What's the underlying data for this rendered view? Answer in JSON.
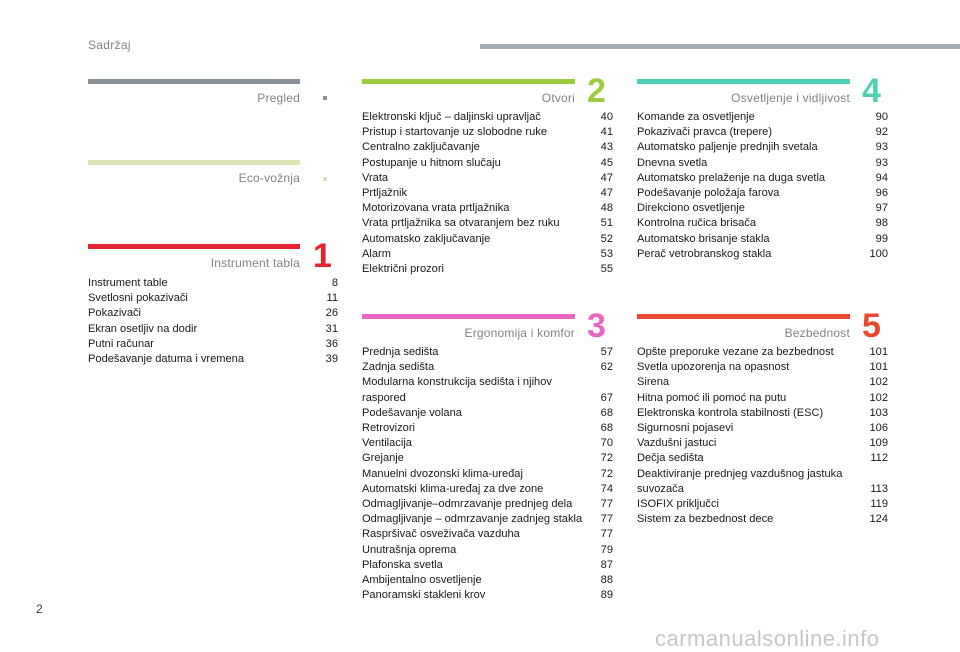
{
  "header": {
    "title": "Sadržaj"
  },
  "page_number": "2",
  "watermark": "carmanualsonline.info",
  "colors": {
    "pregled": "#8a9196",
    "eco": "#dde3b5",
    "instrument": "#e3242f",
    "otvori": "#9ccb3b",
    "ergonomija": "#e966c3",
    "osvetljenje": "#4fd0b4",
    "bezbednost": "#e8492e"
  },
  "sections": {
    "pregled": {
      "title": "Pregled"
    },
    "eco": {
      "title": "Eco-vožnja"
    },
    "instrument": {
      "title": "Instrument tabla",
      "number": "1",
      "items": [
        {
          "title": "Instrument table",
          "page": "8"
        },
        {
          "title": "Svetlosni pokazivači",
          "page": "11"
        },
        {
          "title": "Pokazivači",
          "page": "26"
        },
        {
          "title": "Ekran osetljiv na dodir",
          "page": "31"
        },
        {
          "title": "Putni računar",
          "page": "36"
        },
        {
          "title": "Podešavanje datuma i vremena",
          "page": "39"
        }
      ]
    },
    "otvori": {
      "title": "Otvori",
      "number": "2",
      "items": [
        {
          "title": "Elektronski ključ – daljinski upravljač",
          "page": "40"
        },
        {
          "title": "Pristup i startovanje uz slobodne ruke",
          "page": "41"
        },
        {
          "title": "Centralno zaključavanje",
          "page": "43"
        },
        {
          "title": "Postupanje u hitnom slučaju",
          "page": "45"
        },
        {
          "title": "Vrata",
          "page": "47"
        },
        {
          "title": "Prtljažnik",
          "page": "47"
        },
        {
          "title": "Motorizovana vrata prtljažnika",
          "page": "48"
        },
        {
          "title": "Vrata prtljažnika sa otvaranjem bez ruku",
          "page": "51"
        },
        {
          "title": "Automatsko zaključavanje",
          "page": "52"
        },
        {
          "title": "Alarm",
          "page": "53"
        },
        {
          "title": "Električni prozori",
          "page": "55"
        }
      ]
    },
    "ergonomija": {
      "title": "Ergonomija i komfor",
      "number": "3",
      "items": [
        {
          "title": "Prednja sedišta",
          "page": "57"
        },
        {
          "title": "Zadnja sedišta",
          "page": "62"
        },
        {
          "title": "Modularna konstrukcija sedišta i njihov raspored",
          "page": "67"
        },
        {
          "title": "Podešavanje volana",
          "page": "68"
        },
        {
          "title": "Retrovizori",
          "page": "68"
        },
        {
          "title": "Ventilacija",
          "page": "70"
        },
        {
          "title": "Grejanje",
          "page": "72"
        },
        {
          "title": "Manuelni dvozonski klima-uređaj",
          "page": "72"
        },
        {
          "title": "Automatski klima-uređaj za dve zone",
          "page": "74"
        },
        {
          "title": "Odmagljivanje–odmrzavanje prednjeg dela",
          "page": "77"
        },
        {
          "title": "Odmagljivanje – odmrzavanje zadnjeg stakla",
          "page": "77"
        },
        {
          "title": "Raspršivač osveživača vazduha",
          "page": "77"
        },
        {
          "title": "Unutrašnja oprema",
          "page": "79"
        },
        {
          "title": "Plafonska svetla",
          "page": "87"
        },
        {
          "title": "Ambijentalno osvetljenje",
          "page": "88"
        },
        {
          "title": "Panoramski stakleni krov",
          "page": "89"
        }
      ]
    },
    "osvetljenje": {
      "title": "Osvetljenje i vidljivost",
      "number": "4",
      "items": [
        {
          "title": "Komande za osvetljenje",
          "page": "90"
        },
        {
          "title": "Pokazivači pravca (trepere)",
          "page": "92"
        },
        {
          "title": "Automatsko paljenje prednjih svetala",
          "page": "93"
        },
        {
          "title": "Dnevna svetla",
          "page": "93"
        },
        {
          "title": "Automatsko prelaženje na duga svetla",
          "page": "94"
        },
        {
          "title": "Podešavanje položaja farova",
          "page": "96"
        },
        {
          "title": "Direkciono osvetljenje",
          "page": "97"
        },
        {
          "title": "Kontrolna ručica brisača",
          "page": "98"
        },
        {
          "title": "Automatsko brisanje stakla",
          "page": "99"
        },
        {
          "title": "Perač vetrobranskog stakla",
          "page": "100"
        }
      ]
    },
    "bezbednost": {
      "title": "Bezbednost",
      "number": "5",
      "items": [
        {
          "title": "Opšte preporuke vezane za bezbednost",
          "page": "101"
        },
        {
          "title": "Svetla upozorenja na opasnost",
          "page": "101"
        },
        {
          "title": "Sirena",
          "page": "102"
        },
        {
          "title": "Hitna pomoć ili pomoć na putu",
          "page": "102"
        },
        {
          "title": "Elektronska kontrola stabilnosti (ESC)",
          "page": "103"
        },
        {
          "title": "Sigurnosni pojasevi",
          "page": "106"
        },
        {
          "title": "Vazdušni jastuci",
          "page": "109"
        },
        {
          "title": "Dečja sedišta",
          "page": "112"
        },
        {
          "title": "Deaktiviranje prednjeg vazdušnog jastuka suvozača",
          "page": "113"
        },
        {
          "title": "ISOFIX priključci",
          "page": "119"
        },
        {
          "title": "Sistem za bezbednost dece",
          "page": "124"
        }
      ]
    }
  }
}
